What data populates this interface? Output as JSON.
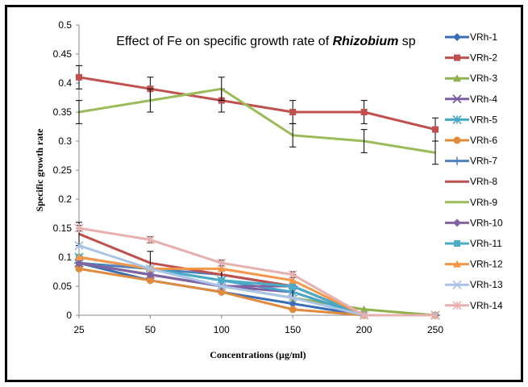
{
  "chart_data": {
    "type": "line",
    "title_prefix": "Effect of Fe on specific growth rate of ",
    "title_italic": "Rhizobium",
    "title_suffix": " sp",
    "xlabel": "Concentrations (µg/ml)",
    "ylabel": "Specific growth rate",
    "categories": [
      "25",
      "50",
      "100",
      "150",
      "200",
      "250"
    ],
    "ylim": [
      0,
      0.5
    ],
    "yticks": [
      "0",
      "0.05",
      "0.1",
      "0.15",
      "0.2",
      "0.25",
      "0.3",
      "0.35",
      "0.4",
      "0.45",
      "0.5"
    ],
    "grid": false,
    "legend_position": "right",
    "series": [
      {
        "name": "VRh-1",
        "color": "#3a6fb5",
        "marker": "diamond",
        "values": [
          0.09,
          0.06,
          0.04,
          0.02,
          0,
          0
        ]
      },
      {
        "name": "VRh-2",
        "color": "#c0504d",
        "marker": "square",
        "values": [
          0.41,
          0.39,
          0.37,
          0.35,
          0.35,
          0.32
        ],
        "error": 0.02
      },
      {
        "name": "VRh-3",
        "color": "#8fb24e",
        "marker": "triangle",
        "values": [
          0.09,
          0.07,
          0.05,
          0.03,
          0.01,
          0
        ]
      },
      {
        "name": "VRh-4",
        "color": "#7d5ea3",
        "marker": "x",
        "values": [
          0.09,
          0.07,
          0.05,
          0.04,
          0,
          0
        ]
      },
      {
        "name": "VRh-5",
        "color": "#45a8c6",
        "marker": "star",
        "values": [
          0.1,
          0.08,
          0.06,
          0.04,
          0,
          0
        ]
      },
      {
        "name": "VRh-6",
        "color": "#e08a3c",
        "marker": "circle",
        "values": [
          0.08,
          0.06,
          0.04,
          0.01,
          0,
          0
        ]
      },
      {
        "name": "VRh-7",
        "color": "#4e81bd",
        "marker": "plus",
        "values": [
          0.09,
          0.08,
          0.07,
          0.05,
          0,
          0
        ]
      },
      {
        "name": "VRh-8",
        "color": "#c0504d",
        "marker": "none",
        "values": [
          0.14,
          0.09,
          0.07,
          0.05,
          0,
          0
        ],
        "error": 0.02
      },
      {
        "name": "VRh-9",
        "color": "#9bbb59",
        "marker": "none",
        "values": [
          0.35,
          0.37,
          0.39,
          0.31,
          0.3,
          0.28
        ],
        "error": 0.02
      },
      {
        "name": "VRh-10",
        "color": "#8064a2",
        "marker": "diamond",
        "values": [
          0.09,
          0.07,
          0.05,
          0.05,
          0,
          0
        ]
      },
      {
        "name": "VRh-11",
        "color": "#4bacc6",
        "marker": "square",
        "values": [
          0.1,
          0.08,
          0.06,
          0.05,
          0,
          0
        ]
      },
      {
        "name": "VRh-12",
        "color": "#f79646",
        "marker": "triangle",
        "values": [
          0.1,
          0.08,
          0.08,
          0.06,
          0,
          0
        ]
      },
      {
        "name": "VRh-13",
        "color": "#a9c4e6",
        "marker": "x",
        "values": [
          0.12,
          0.08,
          0.05,
          0.03,
          0,
          0
        ]
      },
      {
        "name": "VRh-14",
        "color": "#e6b0ae",
        "marker": "star",
        "values": [
          0.15,
          0.13,
          0.09,
          0.07,
          0,
          0
        ],
        "error": 0.005
      }
    ]
  }
}
